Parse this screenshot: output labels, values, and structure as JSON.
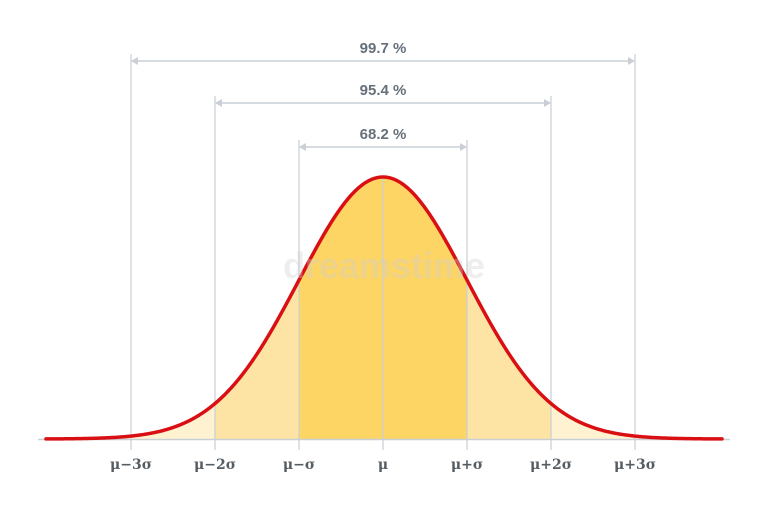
{
  "diagram": {
    "intervals": [
      {
        "label": "68.2 %",
        "from_sigma": -1,
        "to_sigma": 1
      },
      {
        "label": "95.4 %",
        "from_sigma": -2,
        "to_sigma": 2
      },
      {
        "label": "99.7 %",
        "from_sigma": -3,
        "to_sigma": 3
      }
    ],
    "ticks": [
      {
        "sigma": -3,
        "label": "μ−3σ"
      },
      {
        "sigma": -2,
        "label": "μ−2σ"
      },
      {
        "sigma": -1,
        "label": "μ−σ"
      },
      {
        "sigma": 0,
        "label": "μ"
      },
      {
        "sigma": 1,
        "label": "μ+σ"
      },
      {
        "sigma": 2,
        "label": "μ+2σ"
      },
      {
        "sigma": 3,
        "label": "μ+3σ"
      }
    ],
    "colors": {
      "curve": "#d90f13",
      "fill_inner": "#fdd565",
      "fill_outer": "#fee4a4",
      "fill_tail": "#fff2d0",
      "guide_lines": "#c9cfd5",
      "axis": "#c9cfd5",
      "bracket_text": "#66707a",
      "tick_text": "#555c62"
    },
    "watermark": "dreamstime"
  }
}
